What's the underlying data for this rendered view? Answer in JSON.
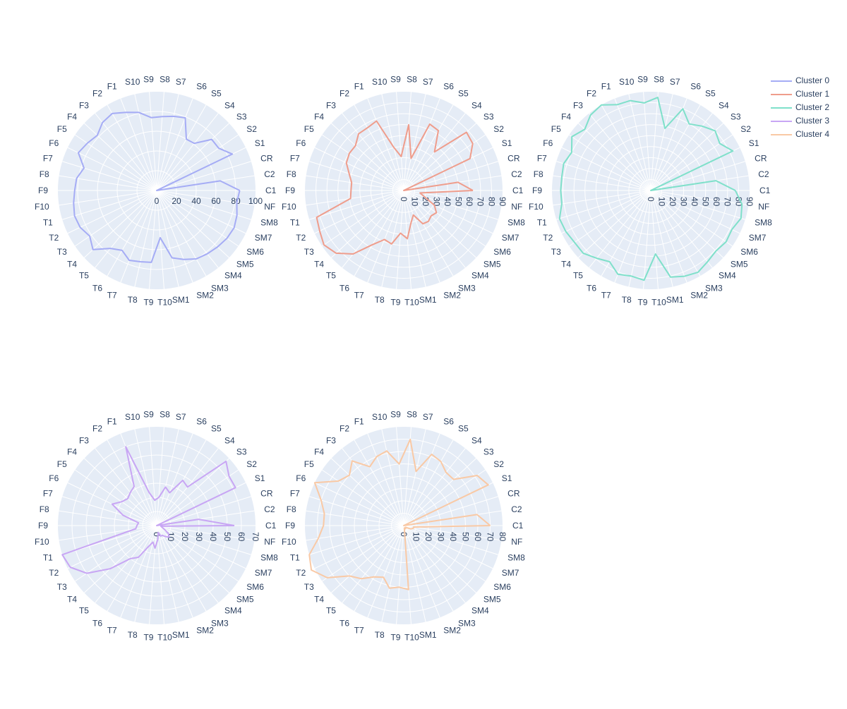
{
  "chart_data": [
    {
      "type": "radar",
      "name": "Cluster 0",
      "color": "#a5acf5",
      "radial_range": [
        0,
        100
      ],
      "radial_ticks": [
        0,
        20,
        40,
        60,
        80,
        100
      ],
      "categories": [
        "C1",
        "C2",
        "CR",
        "S1",
        "S2",
        "S3",
        "S4",
        "S5",
        "S6",
        "S7",
        "S8",
        "S9",
        "S10",
        "F1",
        "F2",
        "F3",
        "F4",
        "F5",
        "F6",
        "F7",
        "F8",
        "F9",
        "F10",
        "T1",
        "T2",
        "T3",
        "T4",
        "T5",
        "T6",
        "T7",
        "T8",
        "T9",
        "T10",
        "SM1",
        "SM2",
        "SM3",
        "SM4",
        "SM5",
        "SM6",
        "SM7",
        "SM8",
        "NF"
      ],
      "values": [
        84,
        65,
        0,
        85,
        76,
        76,
        61,
        60,
        79,
        77,
        75,
        74,
        81,
        85,
        90,
        88,
        82,
        85,
        88,
        77,
        82,
        83,
        85,
        87,
        86,
        82,
        88,
        75,
        70,
        76,
        74,
        73,
        48,
        70,
        75,
        80,
        82,
        84,
        86,
        87,
        85,
        82
      ]
    },
    {
      "type": "radar",
      "name": "Cluster 1",
      "color": "#ef9d8c",
      "radial_range": [
        0,
        90
      ],
      "radial_ticks": [
        0,
        10,
        20,
        30,
        40,
        50,
        60,
        70,
        80,
        90
      ],
      "categories": [
        "C1",
        "C2",
        "CR",
        "S1",
        "S2",
        "S3",
        "S4",
        "S5",
        "S6",
        "S7",
        "S8",
        "S9",
        "S10",
        "F1",
        "F2",
        "F3",
        "F4",
        "F5",
        "F6",
        "F7",
        "F8",
        "F9",
        "F10",
        "T1",
        "T2",
        "T3",
        "T4",
        "T5",
        "T6",
        "T7",
        "T8",
        "T9",
        "T10",
        "SM1",
        "SM2",
        "SM3",
        "SM4",
        "SM5",
        "SM6",
        "SM7",
        "SM8",
        "NF"
      ],
      "values": [
        63,
        50,
        0,
        67,
        76,
        78,
        45,
        63,
        65,
        30,
        60,
        31,
        40,
        68,
        66,
        66,
        60,
        60,
        58,
        52,
        48,
        48,
        49,
        83,
        85,
        88,
        84,
        74,
        57,
        48,
        50,
        39,
        44,
        30,
        24,
        35,
        36,
        34,
        36,
        31,
        20,
        15
      ]
    },
    {
      "type": "radar",
      "name": "Cluster 2",
      "color": "#7fe0ca",
      "radial_range": [
        0,
        90
      ],
      "radial_ticks": [
        0,
        10,
        20,
        30,
        40,
        50,
        60,
        70,
        80,
        90
      ],
      "categories": [
        "C1",
        "C2",
        "CR",
        "S1",
        "S2",
        "S3",
        "S4",
        "S5",
        "S6",
        "S7",
        "S8",
        "S9",
        "S10",
        "F1",
        "F2",
        "F3",
        "F4",
        "F5",
        "F6",
        "F7",
        "F8",
        "F9",
        "F10",
        "T1",
        "T2",
        "T3",
        "T4",
        "T5",
        "T6",
        "T7",
        "T8",
        "T9",
        "T10",
        "SM1",
        "SM2",
        "SM3",
        "SM4",
        "SM5",
        "SM6",
        "SM7",
        "SM8",
        "NF"
      ],
      "values": [
        77,
        60,
        0,
        83,
        76,
        80,
        75,
        70,
        80,
        58,
        85,
        80,
        84,
        84,
        90,
        88,
        82,
        87,
        80,
        83,
        82,
        82,
        82,
        87,
        86,
        84,
        84,
        79,
        75,
        82,
        80,
        82,
        58,
        81,
        84,
        86,
        83,
        81,
        83,
        82,
        86,
        84
      ]
    },
    {
      "type": "radar",
      "name": "Cluster 3",
      "color": "#c8a6f4",
      "radial_range": [
        0,
        70
      ],
      "radial_ticks": [
        0,
        10,
        20,
        30,
        40,
        50,
        60,
        70
      ],
      "categories": [
        "C1",
        "C2",
        "CR",
        "S1",
        "S2",
        "S3",
        "S4",
        "S5",
        "S6",
        "S7",
        "S8",
        "S9",
        "S10",
        "F1",
        "F2",
        "F3",
        "F4",
        "F5",
        "F6",
        "F7",
        "F8",
        "F9",
        "F10",
        "T1",
        "T2",
        "T3",
        "T4",
        "T5",
        "T6",
        "T7",
        "T8",
        "T9",
        "T10",
        "SM1",
        "SM2",
        "SM3",
        "SM4",
        "SM5",
        "SM6",
        "SM7",
        "SM8",
        "NF"
      ],
      "values": [
        55,
        30,
        0,
        62,
        62,
        67,
        35,
        37,
        25,
        28,
        20,
        18,
        24,
        60,
        32,
        30,
        28,
        30,
        35,
        25,
        13,
        14,
        15,
        70,
        68,
        60,
        45,
        30,
        26,
        16,
        12,
        16,
        10,
        5,
        8,
        8,
        10,
        12,
        10,
        6,
        4,
        3
      ]
    },
    {
      "type": "radar",
      "name": "Cluster 4",
      "color": "#f9c9a5",
      "radial_range": [
        0,
        80
      ],
      "radial_ticks": [
        0,
        10,
        20,
        30,
        40,
        50,
        60,
        70,
        80
      ],
      "categories": [
        "C1",
        "C2",
        "CR",
        "S1",
        "S2",
        "S3",
        "S4",
        "S5",
        "S6",
        "S7",
        "S8",
        "S9",
        "S10",
        "F1",
        "F2",
        "F3",
        "F4",
        "F5",
        "F6",
        "F7",
        "F8",
        "F9",
        "F10",
        "T1",
        "T2",
        "T3",
        "T4",
        "T5",
        "T6",
        "T7",
        "T8",
        "T9",
        "T10",
        "SM1",
        "SM2",
        "SM3",
        "SM4",
        "SM5",
        "SM6",
        "SM7",
        "SM8",
        "NF"
      ],
      "values": [
        70,
        60,
        0,
        76,
        72,
        55,
        55,
        60,
        62,
        45,
        70,
        50,
        62,
        60,
        55,
        67,
        60,
        64,
        80,
        70,
        65,
        65,
        70,
        80,
        83,
        75,
        60,
        55,
        48,
        45,
        52,
        50,
        52,
        2,
        2,
        3,
        2,
        2,
        3,
        6,
        8,
        8
      ]
    }
  ],
  "legend": {
    "items": [
      {
        "label": "Cluster 0",
        "color": "#a5acf5"
      },
      {
        "label": "Cluster 1",
        "color": "#ef9d8c"
      },
      {
        "label": "Cluster 2",
        "color": "#7fe0ca"
      },
      {
        "label": "Cluster 3",
        "color": "#c8a6f4"
      },
      {
        "label": "Cluster 4",
        "color": "#f9c9a5"
      }
    ]
  },
  "colors": {
    "plot_bg": "#e5ecf6",
    "grid": "#ffffff",
    "text": "#2a3f5f"
  }
}
